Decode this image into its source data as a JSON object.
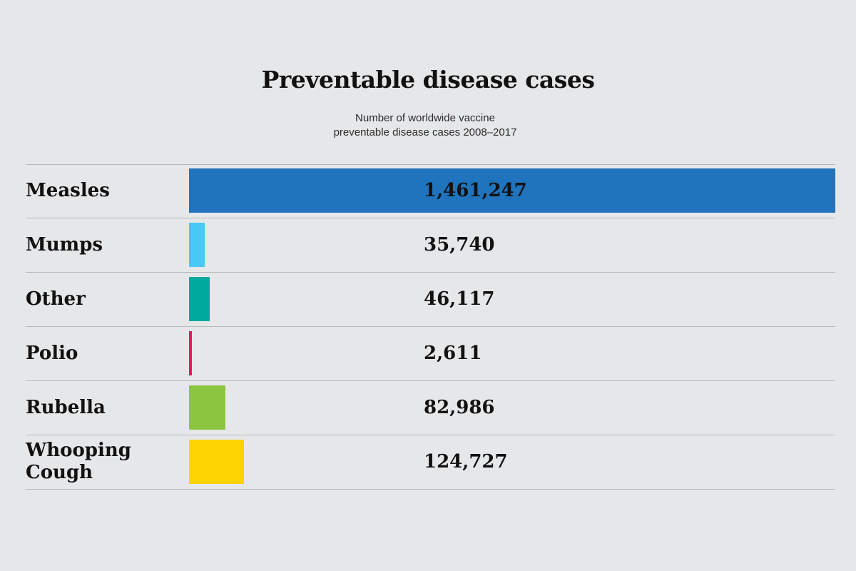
{
  "chart_data": {
    "type": "bar",
    "orientation": "horizontal",
    "title": "Preventable disease cases",
    "subtitle": [
      "Number of worldwide vaccine",
      "preventable disease cases 2008–2017"
    ],
    "xlabel": "",
    "ylabel": "",
    "grid": false,
    "xlim": [
      0,
      1461247
    ],
    "categories": [
      "Measles",
      "Mumps",
      "Other",
      "Polio",
      "Rubella",
      "Whooping Cough"
    ],
    "category_lines": [
      [
        "Measles"
      ],
      [
        "Mumps"
      ],
      [
        "Other"
      ],
      [
        "Polio"
      ],
      [
        "Rubella"
      ],
      [
        "Whooping",
        "Cough"
      ]
    ],
    "values": [
      1461247,
      35740,
      46117,
      2611,
      82986,
      124727
    ],
    "value_labels": [
      "1,461,247",
      "35,740",
      "46,117",
      "2,611",
      "82,986",
      "124,727"
    ],
    "colors": [
      "#1f74bd",
      "#48c8f5",
      "#00a99d",
      "#e8185f",
      "#8cc540",
      "#ffd400"
    ]
  }
}
